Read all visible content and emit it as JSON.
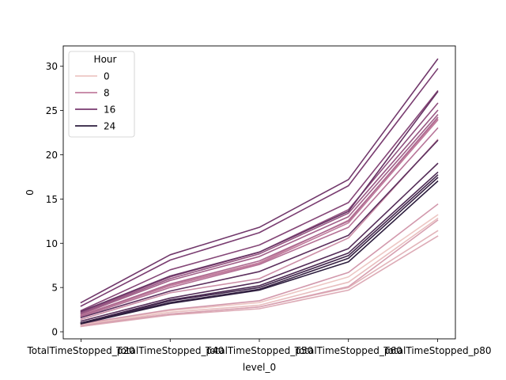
{
  "chart_data": {
    "type": "line",
    "xlabel": "level_0",
    "ylabel": "0",
    "categories": [
      "TotalTimeStopped_p20",
      "TotalTimeStopped_p40",
      "TotalTimeStopped_p50",
      "TotalTimeStopped_p60",
      "TotalTimeStopped_p80"
    ],
    "ylim": [
      -0.8,
      32.3
    ],
    "yticks": [
      0,
      5,
      10,
      15,
      20,
      25,
      30
    ],
    "grid": false,
    "legend": {
      "title": "Hour",
      "placement": "top-left",
      "entries": [
        {
          "label": "0",
          "color": "#edc7c4"
        },
        {
          "label": "8",
          "color": "#c37f9f"
        },
        {
          "label": "16",
          "color": "#773a6f"
        },
        {
          "label": "24",
          "color": "#2d1e3e"
        }
      ]
    },
    "hue_range": [
      0,
      23
    ],
    "series": [
      {
        "hour": 0,
        "values": [
          0.8,
          2.4,
          3.3,
          6.2,
          13.2
        ]
      },
      {
        "hour": 1,
        "values": [
          0.7,
          2.2,
          3.0,
          5.6,
          12.8
        ]
      },
      {
        "hour": 2,
        "values": [
          0.6,
          2.0,
          2.8,
          5.0,
          11.4
        ]
      },
      {
        "hour": 3,
        "values": [
          0.6,
          1.9,
          2.6,
          4.7,
          10.8
        ]
      },
      {
        "hour": 4,
        "values": [
          0.7,
          2.0,
          2.8,
          5.1,
          12.6
        ]
      },
      {
        "hour": 5,
        "values": [
          0.9,
          2.5,
          3.5,
          6.7,
          14.4
        ]
      },
      {
        "hour": 6,
        "values": [
          1.4,
          4.4,
          6.0,
          10.6,
          21.7
        ]
      },
      {
        "hour": 7,
        "values": [
          1.9,
          5.3,
          7.8,
          12.6,
          24.0
        ]
      },
      {
        "hour": 8,
        "values": [
          1.8,
          5.2,
          7.7,
          12.3,
          23.9
        ]
      },
      {
        "hour": 9,
        "values": [
          1.7,
          5.0,
          7.6,
          11.8,
          23.0
        ]
      },
      {
        "hour": 10,
        "values": [
          1.8,
          5.4,
          8.0,
          12.5,
          24.2
        ]
      },
      {
        "hour": 11,
        "values": [
          2.0,
          5.8,
          8.5,
          13.0,
          24.5
        ]
      },
      {
        "hour": 12,
        "values": [
          2.1,
          6.0,
          8.8,
          13.4,
          25.0
        ]
      },
      {
        "hour": 13,
        "values": [
          2.2,
          6.2,
          9.0,
          13.8,
          25.8
        ]
      },
      {
        "hour": 14,
        "values": [
          2.4,
          7.0,
          9.8,
          14.6,
          27.2
        ]
      },
      {
        "hour": 15,
        "values": [
          2.9,
          8.1,
          11.2,
          16.5,
          29.7
        ]
      },
      {
        "hour": 16,
        "values": [
          3.3,
          8.7,
          11.8,
          17.2,
          30.8
        ]
      },
      {
        "hour": 17,
        "values": [
          2.3,
          6.3,
          9.0,
          13.6,
          27.1
        ]
      },
      {
        "hour": 18,
        "values": [
          1.6,
          4.6,
          6.8,
          10.9,
          21.6
        ]
      },
      {
        "hour": 19,
        "values": [
          1.2,
          3.8,
          5.6,
          9.4,
          19.0
        ]
      },
      {
        "hour": 20,
        "values": [
          1.0,
          3.6,
          5.2,
          8.9,
          18.0
        ]
      },
      {
        "hour": 21,
        "values": [
          1.0,
          3.5,
          5.0,
          8.6,
          17.7
        ]
      },
      {
        "hour": 22,
        "values": [
          1.0,
          3.3,
          4.8,
          8.3,
          17.4
        ]
      },
      {
        "hour": 23,
        "values": [
          0.9,
          3.2,
          4.7,
          7.9,
          17.0
        ]
      }
    ]
  }
}
